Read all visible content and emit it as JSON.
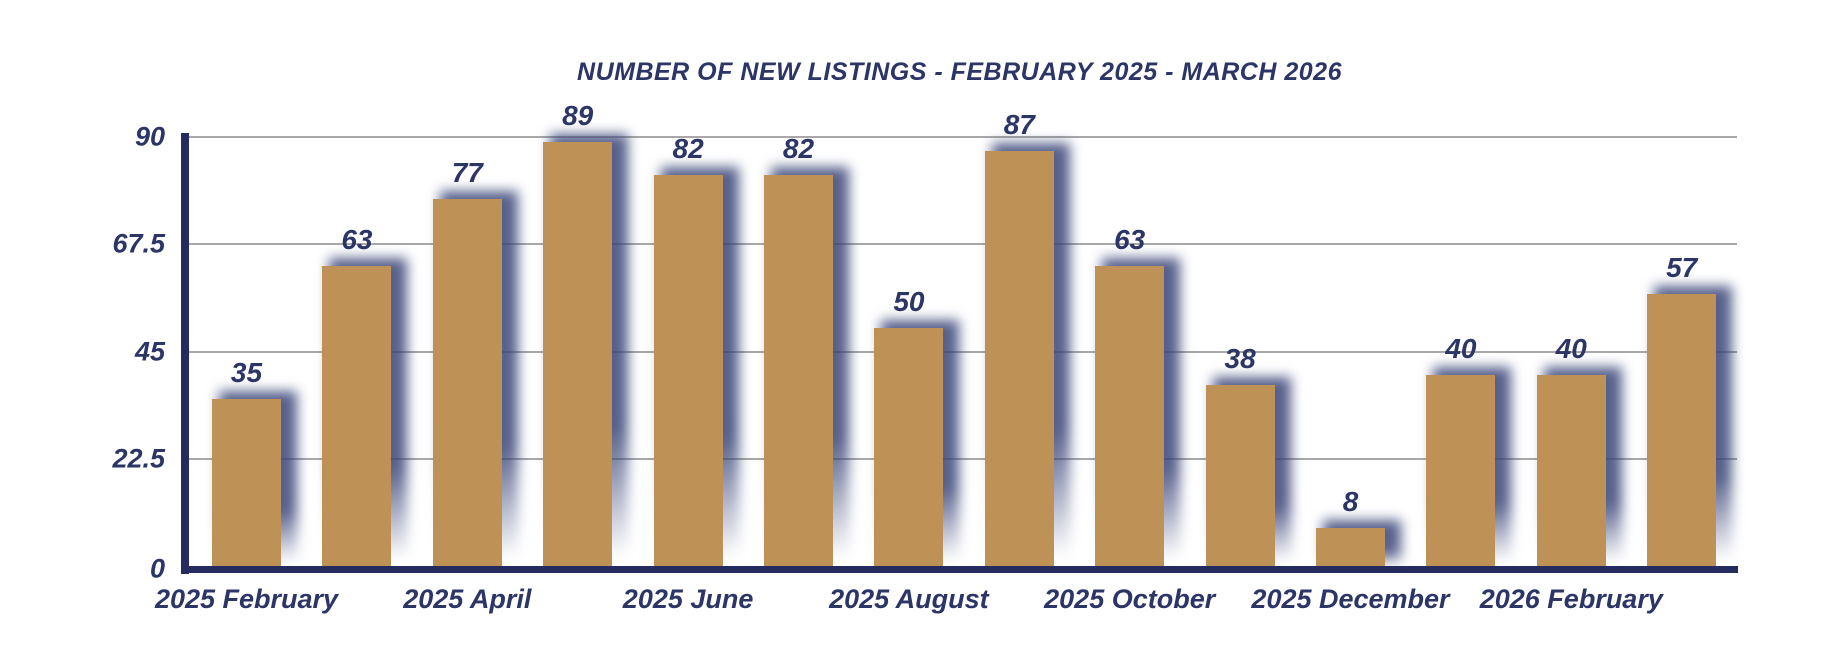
{
  "page": {
    "background": "#FFFFFF"
  },
  "chart_data": {
    "type": "bar",
    "title": "NUMBER OF NEW LISTINGS - FEBRUARY 2025 - MARCH 2026",
    "values": [
      35,
      63,
      77,
      89,
      82,
      82,
      50,
      87,
      63,
      38,
      8,
      40,
      40,
      57
    ],
    "bar_value_labels": [
      "35",
      "63",
      "77",
      "89",
      "82",
      "82",
      "50",
      "87",
      "63",
      "38",
      "8",
      "40",
      "40",
      "57"
    ],
    "x_axis": {
      "tick_labels": [
        "2025 February",
        "2025 April",
        "2025 June",
        "2025 August",
        "2025 October",
        "2025 December",
        "2026 February"
      ],
      "tick_bar_indices": [
        0,
        2,
        4,
        6,
        8,
        10,
        12
      ]
    },
    "y_axis": {
      "tick_labels": [
        "90",
        "67.5",
        "45",
        "22.5",
        "0"
      ],
      "tick_values": [
        90,
        67.5,
        45,
        22.5,
        0
      ],
      "range": [
        0,
        90
      ]
    },
    "grid": "horizontal-on",
    "legend": "none",
    "colors": {
      "bar": "#BE9156",
      "bar_shadow": "#3A4578",
      "axis": "#242C5F",
      "gridline": "#A8A8A8",
      "text": "#2B3566"
    }
  }
}
